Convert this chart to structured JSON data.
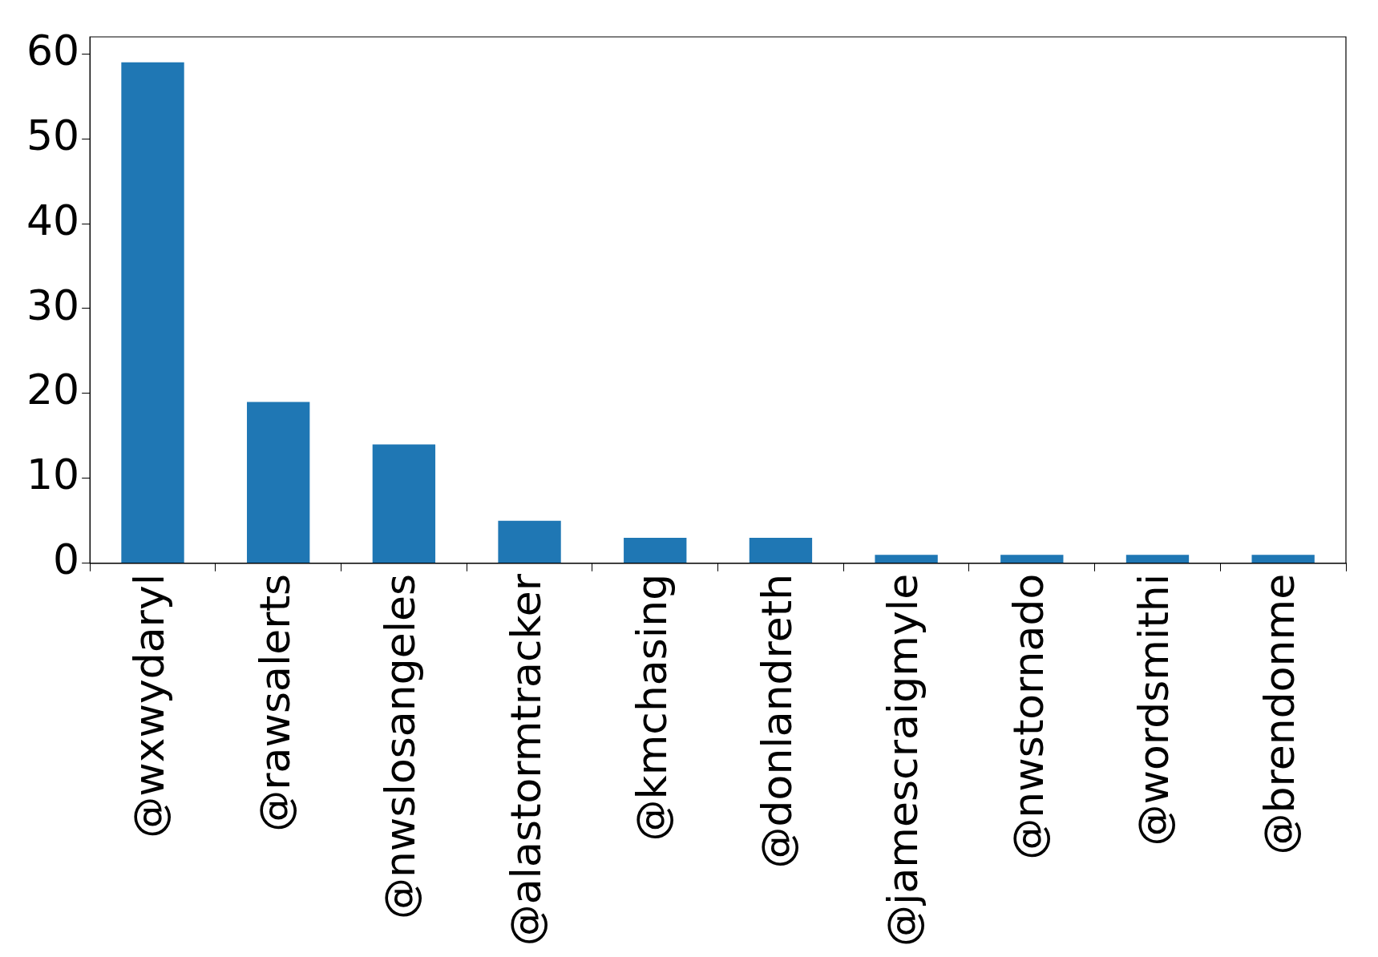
{
  "chart_data": {
    "type": "bar",
    "categories": [
      "@wxwydaryl",
      "@rawsalerts",
      "@nwslosangeles",
      "@alastormtracker",
      "@kmchasing",
      "@donlandreth",
      "@jamescraigmyle",
      "@nwstornado",
      "@wordsmithi",
      "@brendonme"
    ],
    "values": [
      59,
      19,
      14,
      5,
      3,
      3,
      1,
      1,
      1,
      1
    ],
    "color": "#1f77b4",
    "ylim": [
      0,
      62
    ],
    "yticks": [
      0,
      10,
      20,
      30,
      40,
      50,
      60
    ],
    "grid": false,
    "legend": false
  }
}
